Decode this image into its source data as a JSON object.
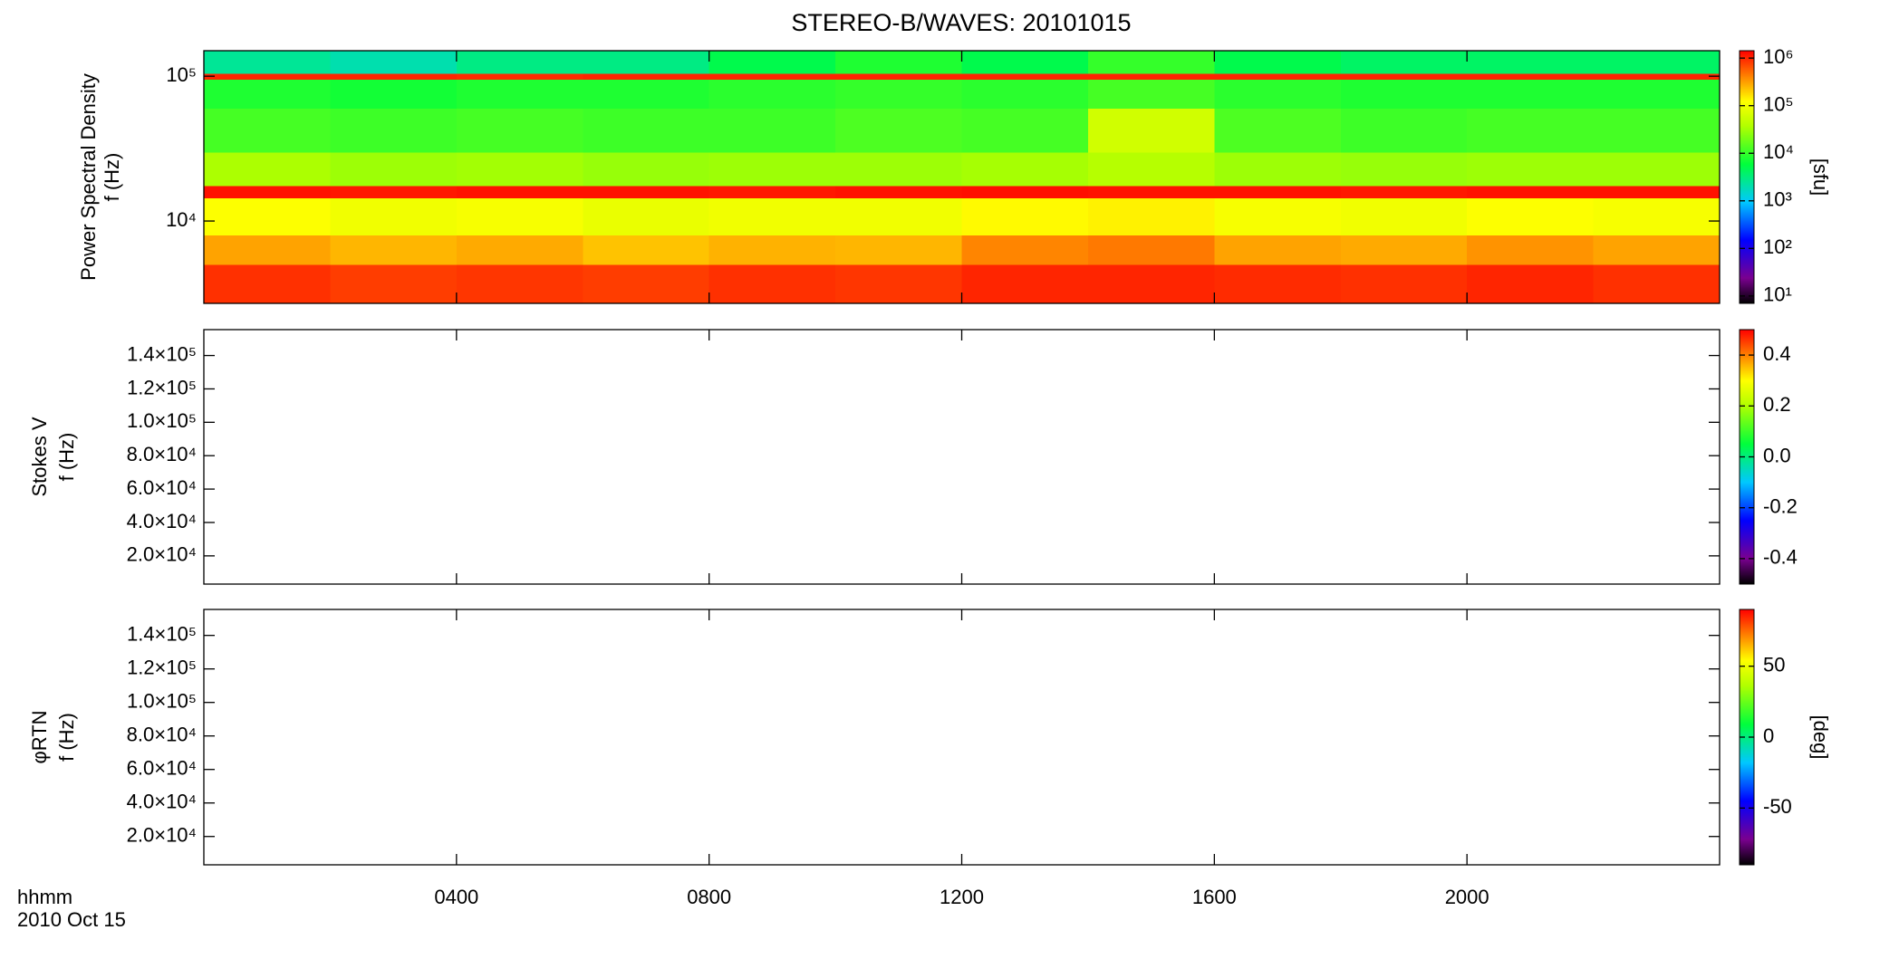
{
  "title": "STEREO-B/WAVES: 20101015",
  "chart_data": [
    {
      "type": "heatmap",
      "ylabel": [
        "Power Spectral Density",
        "f (Hz)"
      ],
      "ylog": true,
      "ylim": [
        2700,
        150000
      ],
      "yticks": [
        {
          "value": 10000,
          "label": "10⁴"
        },
        {
          "value": 100000,
          "label": "10⁵"
        }
      ],
      "xlim": [
        0,
        24
      ],
      "xticks": [
        4,
        8,
        12,
        16,
        20
      ],
      "x": [
        0,
        2,
        4,
        6,
        8,
        10,
        12,
        14,
        16,
        18,
        20,
        22,
        24
      ],
      "y_bins": [
        2700,
        5000,
        8000,
        14500,
        17500,
        30000,
        60000,
        95000,
        105000,
        150000
      ],
      "values": [
        [
          900000,
          800000,
          850000,
          800000,
          900000,
          850000,
          1000000,
          1000000,
          950000,
          900000,
          1000000,
          900000
        ],
        [
          300000,
          250000,
          280000,
          220000,
          260000,
          250000,
          400000,
          450000,
          300000,
          280000,
          350000,
          300000
        ],
        [
          120000,
          100000,
          110000,
          90000,
          100000,
          100000,
          130000,
          140000,
          110000,
          100000,
          120000,
          110000
        ],
        [
          1200000,
          1150000,
          1200000,
          1200000,
          1150000,
          1200000,
          1250000,
          1200000,
          1200000,
          1150000,
          1200000,
          1200000
        ],
        [
          35000,
          30000,
          32000,
          28000,
          30000,
          30000,
          33000,
          40000,
          30000,
          28000,
          30000,
          30000
        ],
        [
          12000,
          11000,
          12000,
          11000,
          11000,
          13000,
          12000,
          60000,
          13000,
          11000,
          12000,
          12000
        ],
        [
          8000,
          7000,
          8000,
          8000,
          9000,
          10000,
          9000,
          12000,
          9000,
          8000,
          8000,
          8000
        ],
        [
          1000000,
          1000000,
          950000,
          1000000,
          1000000,
          1000000,
          1000000,
          1000000,
          1000000,
          1000000,
          1000000,
          1000000
        ],
        [
          2500,
          2000,
          3000,
          3000,
          5000,
          8000,
          5000,
          10000,
          5000,
          4000,
          4000,
          4000
        ]
      ],
      "colormap": "rainbow",
      "clog": true,
      "clim": [
        7,
        1430000
      ],
      "cticks": [
        {
          "value": 10,
          "label": "10¹"
        },
        {
          "value": 100,
          "label": "10²"
        },
        {
          "value": 1000,
          "label": "10³"
        },
        {
          "value": 10000,
          "label": "10⁴"
        },
        {
          "value": 100000,
          "label": "10⁵"
        },
        {
          "value": 1000000,
          "label": "10⁶"
        }
      ],
      "clabel": "[sfu]"
    },
    {
      "type": "heatmap",
      "ylabel": [
        "Stokes V",
        "f (Hz)"
      ],
      "ylim": [
        3100,
        155500
      ],
      "yticks": [
        {
          "value": 20000,
          "label": "2.0×10⁴"
        },
        {
          "value": 40000,
          "label": "4.0×10⁴"
        },
        {
          "value": 60000,
          "label": "6.0×10⁴"
        },
        {
          "value": 80000,
          "label": "8.0×10⁴"
        },
        {
          "value": 100000,
          "label": "1.0×10⁵"
        },
        {
          "value": 120000,
          "label": "1.2×10⁵"
        },
        {
          "value": 140000,
          "label": "1.4×10⁵"
        }
      ],
      "xlim": [
        0,
        24
      ],
      "xticks": [
        4,
        8,
        12,
        16,
        20
      ],
      "colormap": "rainbow",
      "clim": [
        -0.5,
        0.5
      ],
      "cticks": [
        -0.4,
        -0.2,
        {
          "value": 0,
          "label": "0.0"
        },
        0.2,
        0.4
      ]
    },
    {
      "type": "heatmap",
      "ylabel": [
        "φRTN",
        "f (Hz)"
      ],
      "ylim": [
        3100,
        155500
      ],
      "yticks": [
        {
          "value": 20000,
          "label": "2.0×10⁴"
        },
        {
          "value": 40000,
          "label": "4.0×10⁴"
        },
        {
          "value": 60000,
          "label": "6.0×10⁴"
        },
        {
          "value": 80000,
          "label": "8.0×10⁴"
        },
        {
          "value": 100000,
          "label": "1.0×10⁵"
        },
        {
          "value": 120000,
          "label": "1.2×10⁵"
        },
        {
          "value": 140000,
          "label": "1.4×10⁵"
        }
      ],
      "xlim": [
        0,
        24
      ],
      "xticks": [
        {
          "value": 4,
          "label": "0400"
        },
        {
          "value": 8,
          "label": "0800"
        },
        {
          "value": 12,
          "label": "1200"
        },
        {
          "value": 16,
          "label": "1600"
        },
        {
          "value": 20,
          "label": "2000"
        }
      ],
      "xlabel": [
        "hhmm",
        "2010 Oct 15"
      ],
      "colormap": "rainbow",
      "clim": [
        -90,
        90
      ],
      "cticks": [
        -50,
        0,
        50
      ],
      "clabel": "[deg]"
    }
  ]
}
